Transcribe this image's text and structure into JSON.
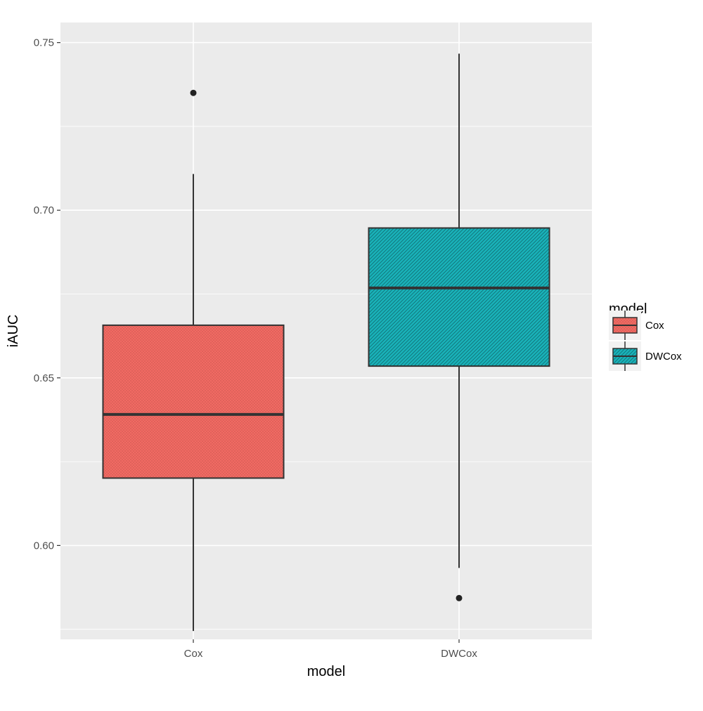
{
  "chart_data": {
    "type": "box",
    "xlabel": "model",
    "ylabel": "iAUC",
    "ylim": [
      0.572,
      0.756
    ],
    "yticks": [
      0.6,
      0.65,
      0.7,
      0.75
    ],
    "ytick_labels": [
      "0.60",
      "0.65",
      "0.70",
      "0.75"
    ],
    "categories": [
      "Cox",
      "DWCox"
    ],
    "grid": true,
    "legend": {
      "title": "model",
      "placement": "right",
      "entries": [
        "Cox",
        "DWCox"
      ]
    },
    "boxes": [
      {
        "category": "Cox",
        "whisker_low": 0.5745,
        "q1": 0.6201,
        "median": 0.6391,
        "q3": 0.6657,
        "whisker_high": 0.7108,
        "outliers": [
          0.735
        ],
        "color": "#F16A63",
        "pattern": "crosshatch"
      },
      {
        "category": "DWCox",
        "whisker_low": 0.5933,
        "q1": 0.6535,
        "median": 0.6768,
        "q3": 0.6947,
        "whisker_high": 0.7467,
        "outliers": [
          0.5843
        ],
        "color": "#19B1B8",
        "pattern": "diagonal"
      }
    ]
  }
}
